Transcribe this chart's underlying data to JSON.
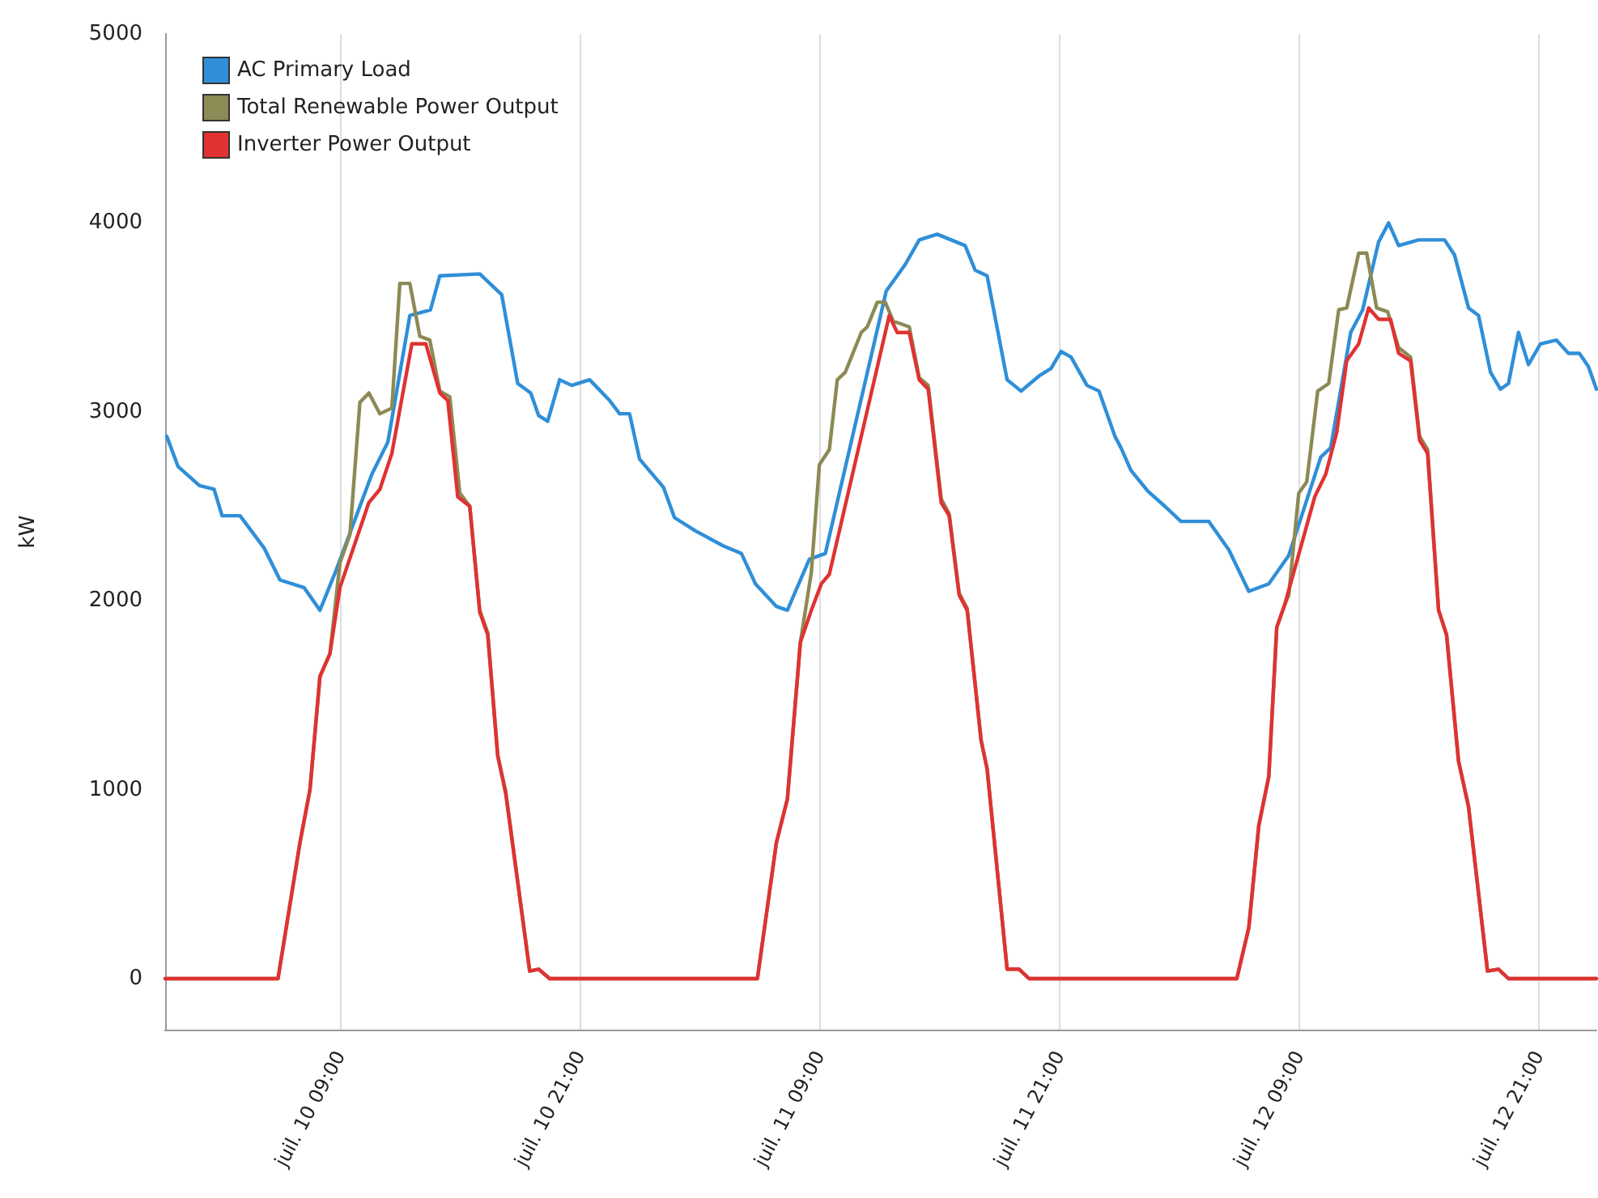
{
  "chart_data": {
    "type": "line",
    "ylabel": "kW",
    "xlim": [
      "--07-10T00:15",
      "--07-12T23:54"
    ],
    "xticks": [
      {
        "value": "--07-10T09:00",
        "label": "juil. 10 09:00"
      },
      {
        "value": "--07-10T21:00",
        "label": "juil. 10 21:00"
      },
      {
        "value": "--07-11T09:00",
        "label": "juil. 11 09:00"
      },
      {
        "value": "--07-11T21:00",
        "label": "juil. 11 21:00"
      },
      {
        "value": "--07-12T09:00",
        "label": "juil. 12 09:00"
      },
      {
        "value": "--07-12T21:00",
        "label": "juil. 12 21:00"
      }
    ],
    "ylim": [
      -270,
      5000
    ],
    "yticks": [
      0,
      1000,
      2000,
      3000,
      4000,
      5000
    ],
    "grid": "x",
    "legend": "top left",
    "marker": "none",
    "line_style": "solid",
    "series": [
      {
        "name": "AC Primary Load",
        "color": "#2f8fd8",
        "x": [
          "--07-10T00:20",
          "--07-10T00:54",
          "--07-10T01:58",
          "--07-10T02:42",
          "--07-10T03:06",
          "--07-10T04:00",
          "--07-10T05:12",
          "--07-10T06:00",
          "--07-10T07:12",
          "--07-10T08:00",
          "--07-10T08:46",
          "--07-10T09:24",
          "--07-10T10:36",
          "--07-10T11:24",
          "--07-10T12:30",
          "--07-10T13:32",
          "--07-10T14:00",
          "--07-10T16:00",
          "--07-10T17:06",
          "--07-10T17:54",
          "--07-10T18:33",
          "--07-10T18:57",
          "--07-10T19:24",
          "--07-10T20:00",
          "--07-10T20:36",
          "--07-10T21:30",
          "--07-10T22:30",
          "--07-10T23:00",
          "--07-10T23:30",
          "--07-11T00:00",
          "--07-11T01:12",
          "--07-11T01:45",
          "--07-11T02:48",
          "--07-11T04:12",
          "--07-11T05:06",
          "--07-11T05:48",
          "--07-11T06:51",
          "--07-11T07:24",
          "--07-11T08:30",
          "--07-11T09:18",
          "--07-11T12:21",
          "--07-11T13:18",
          "--07-11T14:00",
          "--07-11T14:54",
          "--07-11T16:18",
          "--07-11T16:48",
          "--07-11T17:24",
          "--07-11T18:24",
          "--07-11T19:06",
          "--07-11T20:00",
          "--07-11T20:36",
          "--07-11T21:06",
          "--07-11T21:36",
          "--07-11T22:24",
          "--07-11T23:00",
          "--07-11T23:48",
          "--07-12T00:06",
          "--07-12T00:36",
          "--07-12T01:27",
          "--07-12T02:18",
          "--07-12T03:06",
          "--07-12T04:30",
          "--07-12T05:30",
          "--07-12T06:30",
          "--07-12T07:30",
          "--07-12T08:30",
          "--07-12T10:06",
          "--07-12T10:36",
          "--07-12T11:36",
          "--07-12T12:12",
          "--07-12T13:00",
          "--07-12T13:30",
          "--07-12T14:00",
          "--07-12T15:00",
          "--07-12T16:18",
          "--07-12T16:48",
          "--07-12T17:30",
          "--07-12T18:00",
          "--07-12T18:36",
          "--07-12T19:06",
          "--07-12T19:30",
          "--07-12T20:00",
          "--07-12T20:30",
          "--07-12T21:06",
          "--07-12T21:54",
          "--07-12T22:30",
          "--07-12T23:03",
          "--07-12T23:30",
          "--07-12T23:54"
        ],
        "values": [
          2870,
          2710,
          2610,
          2590,
          2450,
          2450,
          2280,
          2110,
          2070,
          1950,
          2150,
          2330,
          2670,
          2840,
          3510,
          3540,
          3720,
          3730,
          3620,
          3150,
          3100,
          2980,
          2950,
          3170,
          3140,
          3170,
          3060,
          2990,
          2990,
          2750,
          2600,
          2440,
          2370,
          2290,
          2250,
          2090,
          1970,
          1950,
          2220,
          2250,
          3640,
          3780,
          3910,
          3940,
          3880,
          3750,
          3720,
          3170,
          3110,
          3190,
          3230,
          3320,
          3290,
          3140,
          3110,
          2870,
          2810,
          2690,
          2580,
          2500,
          2420,
          2420,
          2270,
          2050,
          2090,
          2240,
          2760,
          2810,
          3420,
          3540,
          3900,
          4000,
          3880,
          3910,
          3910,
          3830,
          3550,
          3510,
          3210,
          3120,
          3150,
          3420,
          3250,
          3360,
          3380,
          3310,
          3310,
          3240,
          3120
        ]
      },
      {
        "name": "Total Renewable Power Output",
        "color": "#8c8a55",
        "x": [
          "--07-10T00:15",
          "--07-10T05:54",
          "--07-10T07:00",
          "--07-10T07:30",
          "--07-10T08:00",
          "--07-10T08:30",
          "--07-10T09:00",
          "--07-10T09:30",
          "--07-10T10:00",
          "--07-10T10:27",
          "--07-10T11:00",
          "--07-10T11:36",
          "--07-10T12:00",
          "--07-10T12:30",
          "--07-10T13:00",
          "--07-10T13:30",
          "--07-10T14:00",
          "--07-10T14:30",
          "--07-10T15:00",
          "--07-10T15:30",
          "--07-10T16:00",
          "--07-10T16:24",
          "--07-10T16:54",
          "--07-10T17:18",
          "--07-10T18:30",
          "--07-10T18:57",
          "--07-10T19:30",
          "--07-11T05:54",
          "--07-11T06:51",
          "--07-11T07:24",
          "--07-11T08:03",
          "--07-11T08:36",
          "--07-11T09:00",
          "--07-11T09:30",
          "--07-11T09:54",
          "--07-11T10:18",
          "--07-11T11:06",
          "--07-11T11:24",
          "--07-11T11:54",
          "--07-11T12:18",
          "--07-11T12:42",
          "--07-11T13:30",
          "--07-11T14:00",
          "--07-11T14:27",
          "--07-11T15:06",
          "--07-11T15:30",
          "--07-11T16:00",
          "--07-11T16:24",
          "--07-11T17:06",
          "--07-11T17:24",
          "--07-11T18:24",
          "--07-11T19:00",
          "--07-11T19:30",
          "--07-12T05:54",
          "--07-12T06:30",
          "--07-12T07:00",
          "--07-12T07:30",
          "--07-12T07:54",
          "--07-12T08:18",
          "--07-12T08:30",
          "--07-12T09:00",
          "--07-12T09:24",
          "--07-12T09:57",
          "--07-12T10:30",
          "--07-12T11:00",
          "--07-12T11:24",
          "--07-12T12:00",
          "--07-12T12:24",
          "--07-12T12:54",
          "--07-12T13:27",
          "--07-12T14:00",
          "--07-12T14:36",
          "--07-12T15:03",
          "--07-12T15:27",
          "--07-12T16:00",
          "--07-12T16:24",
          "--07-12T17:00",
          "--07-12T17:30",
          "--07-12T18:27",
          "--07-12T19:00",
          "--07-12T19:30",
          "--07-12T23:54"
        ],
        "values": [
          0,
          0,
          720,
          1000,
          1600,
          1720,
          2200,
          2350,
          3050,
          3100,
          2990,
          3020,
          3680,
          3680,
          3400,
          3380,
          3110,
          3080,
          2570,
          2500,
          1950,
          1830,
          1180,
          990,
          40,
          50,
          0,
          0,
          720,
          950,
          1780,
          2150,
          2720,
          2800,
          3170,
          3210,
          3420,
          3450,
          3580,
          3580,
          3480,
          3450,
          3180,
          3140,
          2540,
          2460,
          2040,
          1960,
          1260,
          1110,
          50,
          50,
          0,
          0,
          270,
          810,
          1070,
          1860,
          1980,
          2030,
          2570,
          2630,
          3110,
          3150,
          3540,
          3550,
          3840,
          3840,
          3550,
          3530,
          3340,
          3290,
          2870,
          2800,
          1950,
          1820,
          1150,
          910,
          40,
          50,
          0,
          0
        ]
      },
      {
        "name": "Inverter Power Output",
        "color": "#e03232",
        "x": [
          "--07-10T00:15",
          "--07-10T05:54",
          "--07-10T07:00",
          "--07-10T07:30",
          "--07-10T08:00",
          "--07-10T08:30",
          "--07-10T09:00",
          "--07-10T10:27",
          "--07-10T11:00",
          "--07-10T11:36",
          "--07-10T12:36",
          "--07-10T13:18",
          "--07-10T14:00",
          "--07-10T14:24",
          "--07-10T14:54",
          "--07-10T15:30",
          "--07-10T16:00",
          "--07-10T16:24",
          "--07-10T16:54",
          "--07-10T17:18",
          "--07-10T18:30",
          "--07-10T18:57",
          "--07-10T19:30",
          "--07-11T05:54",
          "--07-11T06:51",
          "--07-11T07:24",
          "--07-11T08:03",
          "--07-11T08:36",
          "--07-11T09:06",
          "--07-11T09:30",
          "--07-11T12:30",
          "--07-11T12:54",
          "--07-11T13:30",
          "--07-11T14:00",
          "--07-11T14:27",
          "--07-11T15:06",
          "--07-11T15:30",
          "--07-11T16:00",
          "--07-11T16:24",
          "--07-11T17:06",
          "--07-11T17:24",
          "--07-11T18:24",
          "--07-11T19:00",
          "--07-11T19:30",
          "--07-12T05:54",
          "--07-12T06:30",
          "--07-12T07:00",
          "--07-12T07:30",
          "--07-12T07:54",
          "--07-12T08:18",
          "--07-12T09:48",
          "--07-12T10:21",
          "--07-12T10:54",
          "--07-12T11:24",
          "--07-12T12:00",
          "--07-12T12:30",
          "--07-12T13:00",
          "--07-12T13:36",
          "--07-12T14:00",
          "--07-12T14:36",
          "--07-12T15:03",
          "--07-12T15:27",
          "--07-12T16:00",
          "--07-12T16:24",
          "--07-12T17:00",
          "--07-12T17:30",
          "--07-12T18:27",
          "--07-12T19:00",
          "--07-12T19:30",
          "--07-12T23:54"
        ],
        "values": [
          0,
          0,
          720,
          1000,
          1600,
          1720,
          2070,
          2520,
          2590,
          2780,
          3360,
          3360,
          3100,
          3060,
          2550,
          2500,
          1940,
          1820,
          1180,
          980,
          40,
          50,
          0,
          0,
          720,
          950,
          1780,
          1950,
          2090,
          2140,
          3510,
          3420,
          3420,
          3170,
          3120,
          2520,
          2450,
          2030,
          1950,
          1260,
          1110,
          50,
          50,
          0,
          0,
          270,
          810,
          1070,
          1860,
          1980,
          2550,
          2670,
          2890,
          3270,
          3360,
          3550,
          3490,
          3490,
          3310,
          3270,
          2850,
          2780,
          1950,
          1820,
          1150,
          910,
          40,
          50,
          0,
          0
        ]
      }
    ]
  }
}
